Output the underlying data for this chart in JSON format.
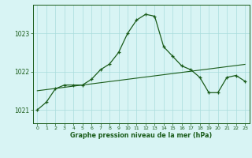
{
  "hours": [
    0,
    1,
    2,
    3,
    4,
    5,
    6,
    7,
    8,
    9,
    10,
    11,
    12,
    13,
    14,
    15,
    16,
    17,
    18,
    19,
    20,
    21,
    22,
    23
  ],
  "pressure": [
    1021.0,
    1021.2,
    1021.55,
    1021.65,
    1021.65,
    1021.65,
    1021.8,
    1022.05,
    1022.2,
    1022.5,
    1023.0,
    1023.35,
    1023.5,
    1023.45,
    1022.65,
    1022.4,
    1022.15,
    1022.05,
    1021.85,
    1021.45,
    1021.45,
    1021.85,
    1021.9,
    1021.75
  ],
  "trend": [
    1021.5,
    1021.53,
    1021.56,
    1021.59,
    1021.62,
    1021.65,
    1021.68,
    1021.71,
    1021.74,
    1021.77,
    1021.8,
    1021.83,
    1021.86,
    1021.89,
    1021.92,
    1021.95,
    1021.98,
    1022.01,
    1022.04,
    1022.07,
    1022.1,
    1022.13,
    1022.16,
    1022.19
  ],
  "line_color": "#1a5c1a",
  "bg_color": "#d8f4f4",
  "grid_color": "#aadddd",
  "xlabel": "Graphe pression niveau de la mer (hPa)",
  "yticks": [
    1021,
    1022,
    1023
  ],
  "ylim": [
    1020.65,
    1023.75
  ],
  "xlim": [
    -0.5,
    23.5
  ],
  "xticks": [
    0,
    1,
    2,
    3,
    4,
    5,
    6,
    7,
    8,
    9,
    10,
    11,
    12,
    13,
    14,
    15,
    16,
    17,
    18,
    19,
    20,
    21,
    22,
    23
  ],
  "xtick_labels": [
    "0",
    "1",
    "2",
    "3",
    "4",
    "5",
    "6",
    "7",
    "8",
    "9",
    "10",
    "11",
    "12",
    "13",
    "14",
    "15",
    "16",
    "17",
    "18",
    "19",
    "20",
    "21",
    "22",
    "23"
  ]
}
